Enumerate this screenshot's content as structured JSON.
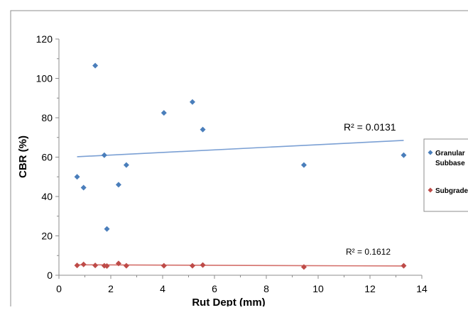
{
  "chart_data": {
    "type": "scatter",
    "xlabel": "Rut Dept (mm)",
    "ylabel": "CBR (%)",
    "xlim": [
      0,
      14
    ],
    "ylim": [
      0,
      120
    ],
    "x_ticks": [
      "0",
      "2",
      "4",
      "6",
      "8",
      "10",
      "12",
      "14"
    ],
    "y_ticks": [
      "0",
      "20",
      "40",
      "60",
      "80",
      "100",
      "120"
    ],
    "grid": false,
    "legend_position": "right",
    "series": [
      {
        "name": "Granular Subbase",
        "legend_lines": [
          "Granular",
          "Subbase"
        ],
        "color": "#4a7ebb",
        "marker": "diamond",
        "points": [
          [
            0.7,
            50
          ],
          [
            0.95,
            44.5
          ],
          [
            1.4,
            106.5
          ],
          [
            1.75,
            61
          ],
          [
            1.85,
            23.5
          ],
          [
            2.3,
            46
          ],
          [
            2.6,
            56
          ],
          [
            4.05,
            82.5
          ],
          [
            5.15,
            88
          ],
          [
            5.55,
            74
          ],
          [
            9.45,
            56
          ],
          [
            13.3,
            61
          ]
        ],
        "trendline": {
          "type": "linear",
          "color": "#7ba0d4",
          "x_range": [
            0.7,
            13.3
          ],
          "y_range": [
            60.2,
            68.5
          ],
          "label": "R² = 0.0131"
        }
      },
      {
        "name": "Subgrade",
        "legend_lines": [
          "Subgrade"
        ],
        "color": "#be4b48",
        "marker": "diamond",
        "points": [
          [
            0.7,
            5
          ],
          [
            0.95,
            5.5
          ],
          [
            1.4,
            5
          ],
          [
            1.75,
            4.8
          ],
          [
            1.85,
            4.7
          ],
          [
            2.3,
            6
          ],
          [
            2.6,
            4.8
          ],
          [
            4.05,
            4.8
          ],
          [
            5.15,
            4.8
          ],
          [
            5.55,
            5.2
          ],
          [
            9.45,
            4.2
          ],
          [
            13.3,
            4.8
          ]
        ],
        "trendline": {
          "type": "linear",
          "color": "#d4706b",
          "x_range": [
            0.7,
            13.3
          ],
          "y_range": [
            5.3,
            4.7
          ],
          "label": "R² = 0.1612"
        }
      }
    ]
  }
}
